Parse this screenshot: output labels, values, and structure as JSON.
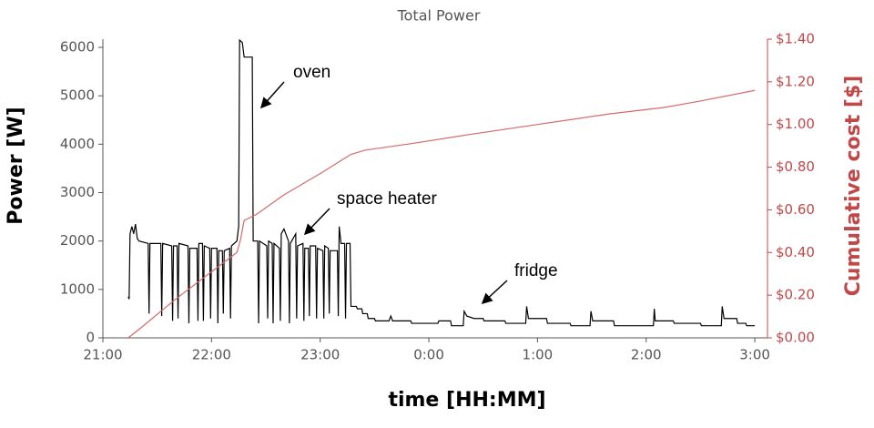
{
  "chart_data": {
    "type": "line",
    "title": "Total Power",
    "xlabel": "time [HH:MM]",
    "ylabel": "Power [W]",
    "y2label": "Cumulative cost [$]",
    "xlim": [
      0,
      367
    ],
    "ylim": [
      0,
      6170
    ],
    "y2lim": [
      0,
      1.4
    ],
    "xticks": [
      {
        "value": 0,
        "label": "21:00"
      },
      {
        "value": 60,
        "label": "22:00"
      },
      {
        "value": 120,
        "label": "23:00"
      },
      {
        "value": 180,
        "label": "0:00"
      },
      {
        "value": 240,
        "label": "1:00"
      },
      {
        "value": 300,
        "label": "2:00"
      },
      {
        "value": 360,
        "label": "3:00"
      }
    ],
    "yticks": [
      0,
      1000,
      2000,
      3000,
      4000,
      5000,
      6000
    ],
    "y2ticks": [
      {
        "value": 0,
        "label": "$0.00"
      },
      {
        "value": 0.2,
        "label": "$0.20"
      },
      {
        "value": 0.4,
        "label": "$0.40"
      },
      {
        "value": 0.6,
        "label": "$0.60"
      },
      {
        "value": 0.8,
        "label": "$0.80"
      },
      {
        "value": 1.0,
        "label": "$1.00"
      },
      {
        "value": 1.2,
        "label": "$1.20"
      },
      {
        "value": 1.4,
        "label": "$1.40"
      }
    ],
    "grid": false,
    "annotations": [
      "oven",
      "space heater",
      "fridge"
    ],
    "series": [
      {
        "name": "Power",
        "color": "#000000",
        "x": [
          14,
          14.5,
          15,
          16,
          17,
          18,
          19,
          20,
          25,
          25.5,
          26,
          32,
          32.5,
          33,
          38,
          38.5,
          39,
          41,
          41.5,
          42,
          47,
          47.5,
          48,
          52,
          52.5,
          53,
          55,
          55.5,
          56,
          59,
          59.5,
          60,
          63,
          63.5,
          64,
          66,
          66.5,
          67,
          70,
          70.5,
          71,
          74,
          75,
          75.5,
          77,
          78,
          82.5,
          83,
          85.5,
          86,
          86.5,
          90.5,
          91,
          91.5,
          93.5,
          94,
          94.5,
          97.5,
          98,
          98.5,
          100,
          102.5,
          103,
          103.5,
          106.5,
          107,
          107.5,
          110.5,
          111,
          111.5,
          113.5,
          114,
          114.5,
          117.5,
          118,
          118.5,
          121.5,
          122,
          122.5,
          124.5,
          125,
          125.5,
          129.5,
          130,
          130.5,
          131.5,
          133.5,
          134,
          134.5,
          136.5,
          137,
          140,
          140.5,
          143,
          143.5,
          146,
          146.5,
          150,
          150.5,
          158,
          159,
          160,
          170,
          170.5,
          180,
          185,
          185.5,
          192,
          192.5,
          199,
          199.5,
          201,
          205,
          210,
          210.5,
          222,
          222.5,
          233.5,
          234,
          235,
          245,
          245.5,
          258,
          258.5,
          269,
          269.5,
          270.5,
          282,
          282.5,
          304,
          304.5,
          305,
          315,
          315.5,
          330,
          330.5,
          341.5,
          342,
          343,
          350,
          350.5,
          355,
          355.5,
          360
        ],
        "values": [
          850,
          800,
          2150,
          2300,
          2150,
          2350,
          2050,
          2000,
          1950,
          500,
          1950,
          1950,
          450,
          1950,
          1900,
          350,
          1900,
          1900,
          400,
          1950,
          1900,
          300,
          1850,
          1850,
          350,
          1950,
          1950,
          350,
          1900,
          1850,
          400,
          1850,
          1850,
          300,
          1800,
          1800,
          500,
          1800,
          1850,
          400,
          1900,
          2000,
          2300,
          6150,
          6100,
          5800,
          5800,
          2000,
          2000,
          300,
          2000,
          1900,
          400,
          2000,
          1950,
          300,
          1950,
          1850,
          350,
          2150,
          2250,
          2000,
          300,
          1950,
          2150,
          400,
          1900,
          1950,
          350,
          1850,
          1850,
          450,
          1900,
          1900,
          400,
          1850,
          1800,
          400,
          1900,
          1850,
          500,
          1800,
          1800,
          450,
          2300,
          1950,
          1950,
          400,
          1950,
          1950,
          650,
          650,
          600,
          600,
          500,
          500,
          400,
          400,
          350,
          350,
          450,
          350,
          350,
          300,
          300,
          300,
          350,
          350,
          250,
          250,
          550,
          450,
          400,
          400,
          350,
          350,
          300,
          300,
          650,
          400,
          400,
          300,
          300,
          250,
          250,
          550,
          350,
          350,
          250,
          250,
          600,
          350,
          350,
          300,
          300,
          250,
          250,
          650,
          400,
          400,
          300,
          300,
          250,
          250
        ]
      },
      {
        "name": "Cumulative cost",
        "color": "#d46a6a",
        "axis": "y2",
        "x": [
          14,
          20,
          40,
          60,
          74,
          76,
          78,
          85,
          100,
          120,
          137,
          145,
          170,
          200,
          240,
          280,
          310,
          330,
          360
        ],
        "values": [
          0,
          0.04,
          0.18,
          0.31,
          0.4,
          0.46,
          0.55,
          0.58,
          0.67,
          0.77,
          0.86,
          0.88,
          0.91,
          0.95,
          1.0,
          1.05,
          1.08,
          1.11,
          1.16
        ]
      }
    ]
  }
}
